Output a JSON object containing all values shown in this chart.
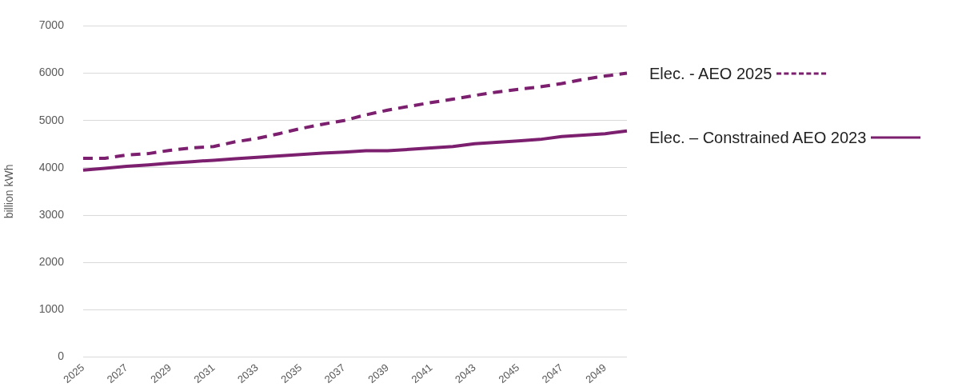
{
  "chart_data": {
    "type": "line",
    "ylabel": "billion kWh",
    "categories": [
      "2025",
      null,
      "2027",
      null,
      "2029",
      null,
      "2031",
      null,
      "2033",
      null,
      "2035",
      null,
      "2037",
      null,
      "2039",
      null,
      "2041",
      null,
      "2043",
      null,
      "2045",
      null,
      "2047",
      null,
      "2049",
      null
    ],
    "series": [
      {
        "name": "Elec. - AEO 2025",
        "color": "#7b1f6e",
        "line_style": "dashed",
        "values": [
          4200,
          4200,
          4270,
          4300,
          4370,
          4420,
          4450,
          4550,
          4620,
          4720,
          4830,
          4920,
          5000,
          5120,
          5220,
          5300,
          5380,
          5450,
          5530,
          5600,
          5660,
          5710,
          5780,
          5870,
          5940,
          6000
        ]
      },
      {
        "name": "Elec. – Constrained AEO 2023",
        "color": "#7b1f6e",
        "line_style": "solid",
        "values": [
          3950,
          3990,
          4030,
          4060,
          4100,
          4130,
          4160,
          4190,
          4220,
          4250,
          4280,
          4310,
          4330,
          4360,
          4360,
          4390,
          4420,
          4450,
          4510,
          4540,
          4570,
          4600,
          4660,
          4690,
          4720,
          4780
        ]
      }
    ],
    "ylim": [
      0,
      7000
    ],
    "yticks": [
      0,
      1000,
      2000,
      3000,
      4000,
      5000,
      6000,
      7000
    ],
    "grid": "y",
    "legend": "right",
    "marker": "none"
  }
}
